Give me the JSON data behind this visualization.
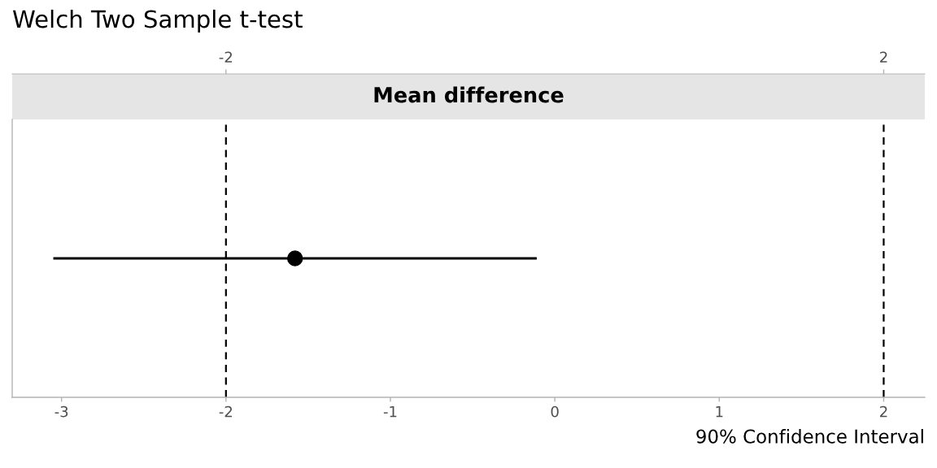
{
  "chart_data": {
    "type": "scatter",
    "title": "Welch Two Sample t-test",
    "subtitle": "Mean difference",
    "xlabel": "90% Confidence Interval",
    "orientation": "horizontal",
    "categories": [
      null
    ],
    "values": [
      -1.58
    ],
    "errors": [
      [
        -3.05,
        -0.11
      ]
    ],
    "color": "#000000",
    "marker": "circle",
    "xlim": [
      -3.3,
      2.25
    ],
    "xticks": [
      -3,
      -2,
      -1,
      0,
      1,
      2
    ],
    "x2lim": [
      -3.3,
      2.25
    ],
    "x2ticks": [
      -2,
      2
    ],
    "ref_lines": [
      {
        "axis": "x",
        "value": -2,
        "color": "#000000",
        "line_style": "dashed"
      },
      {
        "axis": "x",
        "value": 2,
        "color": "#000000",
        "line_style": "dashed"
      }
    ],
    "tick_labels": "x"
  }
}
